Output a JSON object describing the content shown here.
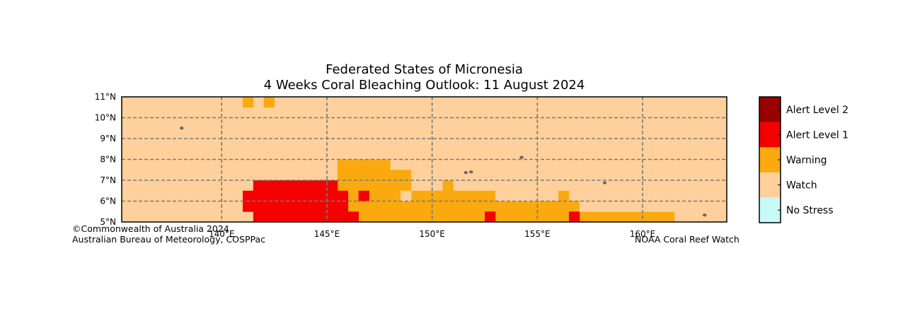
{
  "title": {
    "line1": "Federated States of Micronesia",
    "line2": "4 Weeks Coral Bleaching Outlook: 11 August 2024"
  },
  "chart_data": {
    "type": "heatmap",
    "title": "Federated States of Micronesia — 4 Weeks Coral Bleaching Outlook: 11 August 2024",
    "xlim": [
      135.25,
      164.0
    ],
    "ylim": [
      5.0,
      11.0
    ],
    "cell_size_deg": 0.5,
    "x_ticks": [
      {
        "value": 140,
        "label": "140°E"
      },
      {
        "value": 145,
        "label": "145°E"
      },
      {
        "value": 150,
        "label": "150°E"
      },
      {
        "value": 155,
        "label": "155°E"
      },
      {
        "value": 160,
        "label": "160°E"
      }
    ],
    "y_ticks": [
      {
        "value": 5,
        "label": "5°N"
      },
      {
        "value": 6,
        "label": "6°N"
      },
      {
        "value": 7,
        "label": "7°N"
      },
      {
        "value": 8,
        "label": "8°N"
      },
      {
        "value": 9,
        "label": "9°N"
      },
      {
        "value": 10,
        "label": "10°N"
      },
      {
        "value": 11,
        "label": "11°N"
      }
    ],
    "grid": true,
    "background_level": "watch",
    "levels": [
      {
        "key": "alert2",
        "label": "Alert Level 2",
        "color": "#990000"
      },
      {
        "key": "alert1",
        "label": "Alert Level 1",
        "color": "#f50000"
      },
      {
        "key": "warning",
        "label": "Warning",
        "color": "#faaa0f"
      },
      {
        "key": "watch",
        "label": "Watch",
        "color": "#ffd09b"
      },
      {
        "key": "nostress",
        "label": "No Stress",
        "color": "#c8fafa"
      }
    ],
    "regions": [
      {
        "level": "warning",
        "lon": [
          141.0,
          141.5
        ],
        "lat": [
          10.5,
          11.0
        ]
      },
      {
        "level": "warning",
        "lon": [
          142.0,
          142.5
        ],
        "lat": [
          10.5,
          11.0
        ]
      },
      {
        "level": "warning",
        "lon": [
          145.5,
          146.0
        ],
        "lat": [
          7.5,
          8.0
        ]
      },
      {
        "level": "warning",
        "lon": [
          146.0,
          148.0
        ],
        "lat": [
          7.5,
          8.0
        ]
      },
      {
        "level": "warning",
        "lon": [
          145.5,
          149.0
        ],
        "lat": [
          7.0,
          7.5
        ]
      },
      {
        "level": "warning",
        "lon": [
          145.5,
          149.0
        ],
        "lat": [
          6.5,
          7.0
        ]
      },
      {
        "level": "warning",
        "lon": [
          150.5,
          151.0
        ],
        "lat": [
          6.5,
          7.0
        ]
      },
      {
        "level": "warning",
        "lon": [
          146.0,
          148.5
        ],
        "lat": [
          6.0,
          6.5
        ]
      },
      {
        "level": "warning",
        "lon": [
          149.0,
          153.0
        ],
        "lat": [
          6.0,
          6.5
        ]
      },
      {
        "level": "warning",
        "lon": [
          156.0,
          156.5
        ],
        "lat": [
          6.0,
          6.5
        ]
      },
      {
        "level": "warning",
        "lon": [
          146.0,
          157.0
        ],
        "lat": [
          5.5,
          6.0
        ]
      },
      {
        "level": "warning",
        "lon": [
          146.5,
          161.5
        ],
        "lat": [
          5.0,
          5.5
        ]
      },
      {
        "level": "alert1",
        "lon": [
          141.5,
          145.5
        ],
        "lat": [
          6.5,
          7.0
        ]
      },
      {
        "level": "alert1",
        "lon": [
          141.0,
          146.0
        ],
        "lat": [
          6.0,
          6.5
        ]
      },
      {
        "level": "alert1",
        "lon": [
          146.5,
          147.0
        ],
        "lat": [
          6.0,
          6.5
        ]
      },
      {
        "level": "alert1",
        "lon": [
          141.0,
          146.0
        ],
        "lat": [
          5.5,
          6.0
        ]
      },
      {
        "level": "alert1",
        "lon": [
          141.5,
          146.5
        ],
        "lat": [
          5.0,
          5.5
        ]
      },
      {
        "level": "alert1",
        "lon": [
          152.5,
          153.0
        ],
        "lat": [
          5.0,
          5.5
        ]
      },
      {
        "level": "alert1",
        "lon": [
          156.5,
          157.0
        ],
        "lat": [
          5.0,
          5.5
        ]
      },
      {
        "level": "watch",
        "lon": [
          148.5,
          149.0
        ],
        "lat": [
          6.0,
          6.5
        ]
      },
      {
        "level": "watch",
        "lon": [
          153.0,
          155.0
        ],
        "lat": [
          6.0,
          6.5
        ]
      },
      {
        "level": "watch",
        "lon": [
          157.0,
          164.0
        ],
        "lat": [
          5.5,
          6.0
        ]
      }
    ],
    "islands": [
      {
        "lon": 138.1,
        "lat": 9.5
      },
      {
        "lon": 151.6,
        "lat": 7.37
      },
      {
        "lon": 151.85,
        "lat": 7.4
      },
      {
        "lon": 154.25,
        "lat": 8.1
      },
      {
        "lon": 158.2,
        "lat": 6.88
      },
      {
        "lon": 162.95,
        "lat": 5.33
      }
    ]
  },
  "credits": {
    "left_line1": "©Commonwealth of Australia 2024",
    "left_line2": "Australian Bureau of Meteorology, COSPPac",
    "right": "NOAA Coral Reef Watch"
  }
}
